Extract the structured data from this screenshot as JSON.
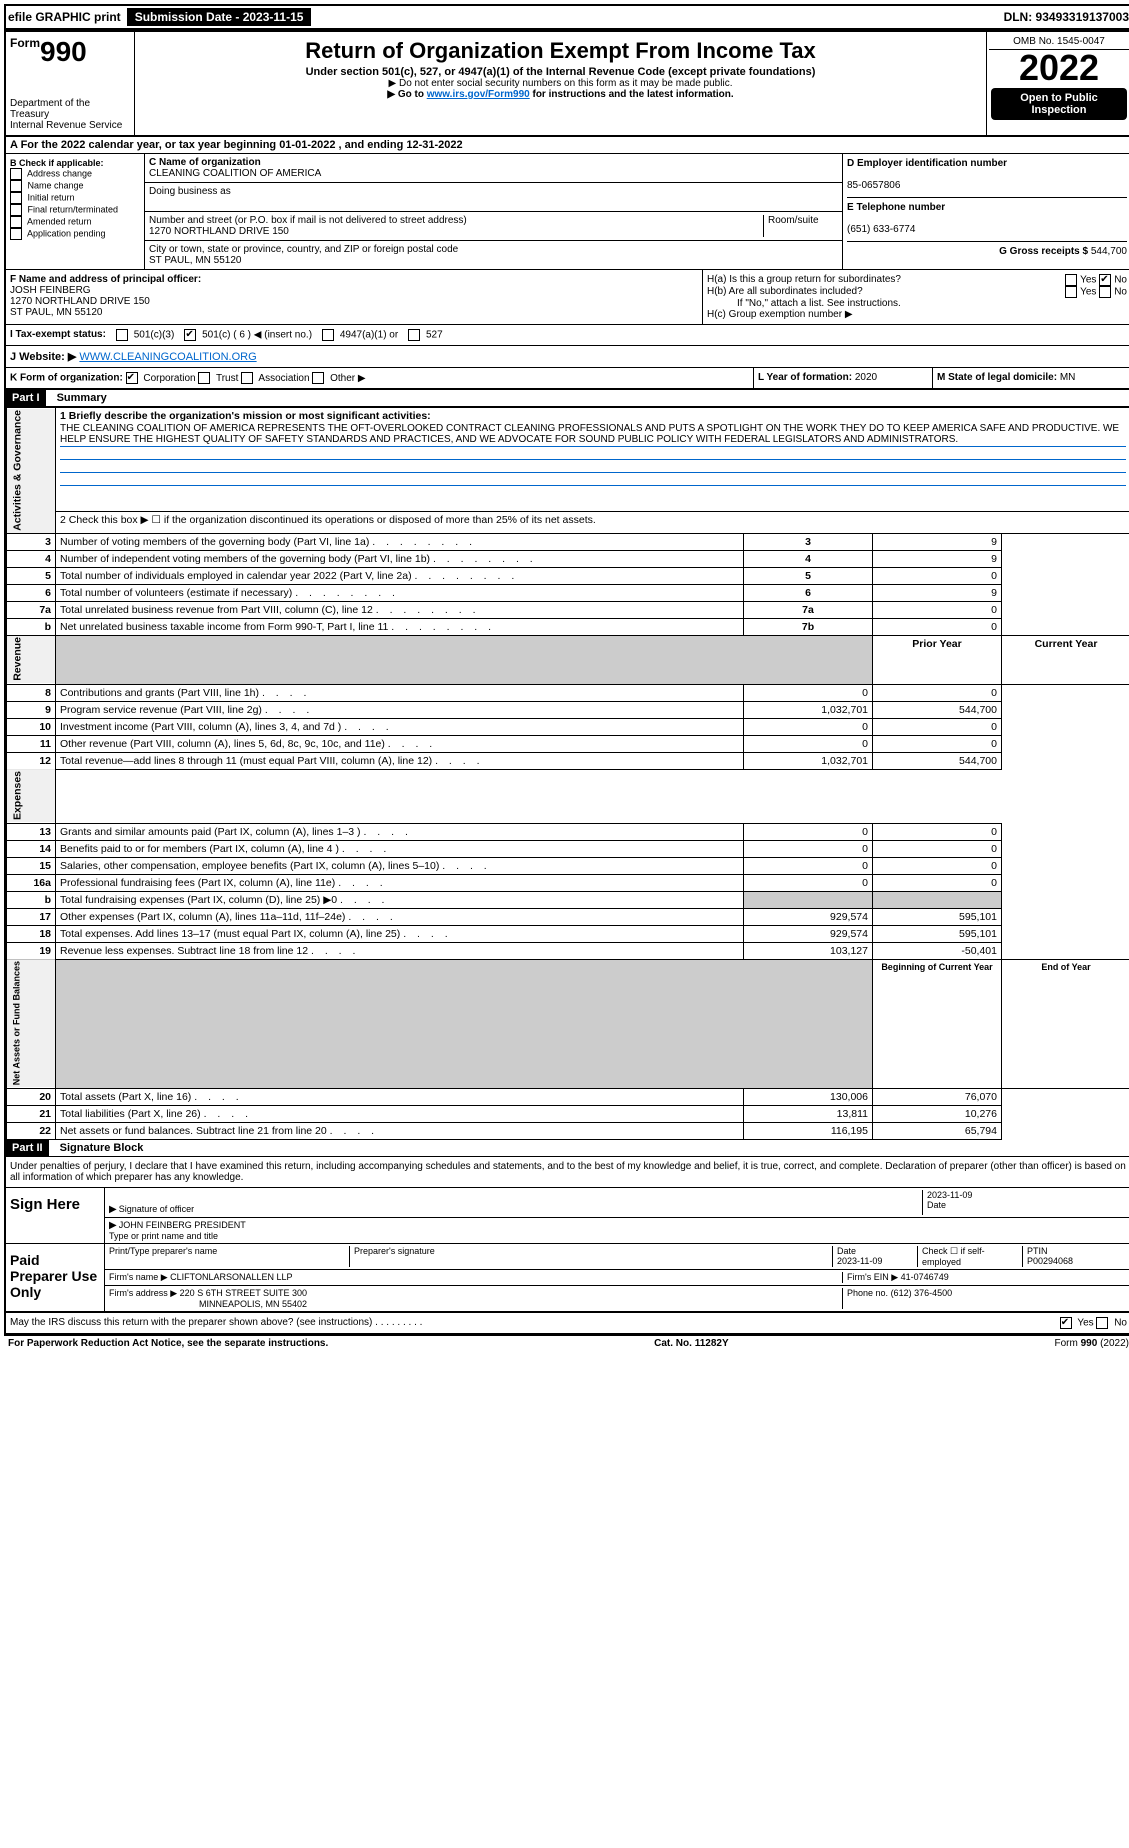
{
  "topbar": {
    "efile": "efile GRAPHIC print",
    "submission_btn": "Submission Date - 2023-11-15",
    "dln": "DLN: 93493319137003"
  },
  "header": {
    "form_word": "Form",
    "form_num": "990",
    "dept": "Department of the Treasury",
    "irs": "Internal Revenue Service",
    "title": "Return of Organization Exempt From Income Tax",
    "sub": "Under section 501(c), 527, or 4947(a)(1) of the Internal Revenue Code (except private foundations)",
    "note1": "▶ Do not enter social security numbers on this form as it may be made public.",
    "note2_pre": "▶ Go to ",
    "note2_link": "www.irs.gov/Form990",
    "note2_post": " for instructions and the latest information.",
    "omb": "OMB No. 1545-0047",
    "year": "2022",
    "open": "Open to Public Inspection"
  },
  "rowA": "A For the 2022 calendar year, or tax year beginning 01-01-2022    , and ending 12-31-2022",
  "colB": {
    "title": "B Check if applicable:",
    "items": [
      "Address change",
      "Name change",
      "Initial return",
      "Final return/terminated",
      "Amended return",
      "Application pending"
    ]
  },
  "colC": {
    "name_label": "C Name of organization",
    "name": "CLEANING COALITION OF AMERICA",
    "dba_label": "Doing business as",
    "dba": "",
    "street_label": "Number and street (or P.O. box if mail is not delivered to street address)",
    "room_label": "Room/suite",
    "street": "1270 NORTHLAND DRIVE 150",
    "city_label": "City or town, state or province, country, and ZIP or foreign postal code",
    "city": "ST PAUL, MN  55120"
  },
  "colD": {
    "ein_label": "D Employer identification number",
    "ein": "85-0657806",
    "phone_label": "E Telephone number",
    "phone": "(651) 633-6774",
    "gross_label": "G Gross receipts $",
    "gross": "544,700"
  },
  "rowF": {
    "label": "F  Name and address of principal officer:",
    "name": "JOSH FEINBERG",
    "addr1": "1270 NORTHLAND DRIVE 150",
    "addr2": "ST PAUL, MN  55120"
  },
  "rowH": {
    "ha": "H(a)  Is this a group return for subordinates?",
    "hb": "H(b)  Are all subordinates included?",
    "hb_note": "If \"No,\" attach a list. See instructions.",
    "hc": "H(c)  Group exemption number ▶",
    "yes": "Yes",
    "no": "No"
  },
  "rowI": {
    "label": "I   Tax-exempt status:",
    "opt1": "501(c)(3)",
    "opt2": "501(c) ( 6 ) ◀ (insert no.)",
    "opt3": "4947(a)(1) or",
    "opt4": "527"
  },
  "rowJ": {
    "label": "J   Website: ▶",
    "url": "WWW.CLEANINGCOALITION.ORG"
  },
  "rowK": {
    "label": "K Form of organization:",
    "opts": [
      "Corporation",
      "Trust",
      "Association",
      "Other ▶"
    ]
  },
  "rowL": {
    "label": "L Year of formation:",
    "val": "2020"
  },
  "rowM": {
    "label": "M State of legal domicile:",
    "val": "MN"
  },
  "part1": {
    "header": "Part I",
    "title": "Summary",
    "line1_label": "1  Briefly describe the organization's mission or most significant activities:",
    "mission": "THE CLEANING COALITION OF AMERICA REPRESENTS THE OFT-OVERLOOKED CONTRACT CLEANING PROFESSIONALS AND PUTS A SPOTLIGHT ON THE WORK THEY DO TO KEEP AMERICA SAFE AND PRODUCTIVE. WE HELP ENSURE THE HIGHEST QUALITY OF SAFETY STANDARDS AND PRACTICES, AND WE ADVOCATE FOR SOUND PUBLIC POLICY WITH FEDERAL LEGISLATORS AND ADMINISTRATORS.",
    "line2": "2   Check this box ▶ ☐  if the organization discontinued its operations or disposed of more than 25% of its net assets.",
    "vtab_gov": "Activities & Governance",
    "vtab_rev": "Revenue",
    "vtab_exp": "Expenses",
    "vtab_net": "Net Assets or Fund Balances",
    "lines_gov": [
      {
        "n": "3",
        "t": "Number of voting members of the governing body (Part VI, line 1a)",
        "box": "3",
        "v": "9"
      },
      {
        "n": "4",
        "t": "Number of independent voting members of the governing body (Part VI, line 1b)",
        "box": "4",
        "v": "9"
      },
      {
        "n": "5",
        "t": "Total number of individuals employed in calendar year 2022 (Part V, line 2a)",
        "box": "5",
        "v": "0"
      },
      {
        "n": "6",
        "t": "Total number of volunteers (estimate if necessary)",
        "box": "6",
        "v": "9"
      },
      {
        "n": "7a",
        "t": "Total unrelated business revenue from Part VIII, column (C), line 12",
        "box": "7a",
        "v": "0"
      },
      {
        "n": "b",
        "t": "Net unrelated business taxable income from Form 990-T, Part I, line 11",
        "box": "7b",
        "v": "0"
      }
    ],
    "col_prior": "Prior Year",
    "col_current": "Current Year",
    "lines_rev": [
      {
        "n": "8",
        "t": "Contributions and grants (Part VIII, line 1h)",
        "p": "0",
        "c": "0"
      },
      {
        "n": "9",
        "t": "Program service revenue (Part VIII, line 2g)",
        "p": "1,032,701",
        "c": "544,700"
      },
      {
        "n": "10",
        "t": "Investment income (Part VIII, column (A), lines 3, 4, and 7d )",
        "p": "0",
        "c": "0"
      },
      {
        "n": "11",
        "t": "Other revenue (Part VIII, column (A), lines 5, 6d, 8c, 9c, 10c, and 11e)",
        "p": "0",
        "c": "0"
      },
      {
        "n": "12",
        "t": "Total revenue—add lines 8 through 11 (must equal Part VIII, column (A), line 12)",
        "p": "1,032,701",
        "c": "544,700"
      }
    ],
    "lines_exp": [
      {
        "n": "13",
        "t": "Grants and similar amounts paid (Part IX, column (A), lines 1–3 )",
        "p": "0",
        "c": "0"
      },
      {
        "n": "14",
        "t": "Benefits paid to or for members (Part IX, column (A), line 4 )",
        "p": "0",
        "c": "0"
      },
      {
        "n": "15",
        "t": "Salaries, other compensation, employee benefits (Part IX, column (A), lines 5–10)",
        "p": "0",
        "c": "0"
      },
      {
        "n": "16a",
        "t": "Professional fundraising fees (Part IX, column (A), line 11e)",
        "p": "0",
        "c": "0"
      },
      {
        "n": "b",
        "t": "Total fundraising expenses (Part IX, column (D), line 25) ▶0",
        "p": "",
        "c": "",
        "gray": true
      },
      {
        "n": "17",
        "t": "Other expenses (Part IX, column (A), lines 11a–11d, 11f–24e)",
        "p": "929,574",
        "c": "595,101"
      },
      {
        "n": "18",
        "t": "Total expenses. Add lines 13–17 (must equal Part IX, column (A), line 25)",
        "p": "929,574",
        "c": "595,101"
      },
      {
        "n": "19",
        "t": "Revenue less expenses. Subtract line 18 from line 12",
        "p": "103,127",
        "c": "-50,401"
      }
    ],
    "col_begin": "Beginning of Current Year",
    "col_end": "End of Year",
    "lines_net": [
      {
        "n": "20",
        "t": "Total assets (Part X, line 16)",
        "p": "130,006",
        "c": "76,070"
      },
      {
        "n": "21",
        "t": "Total liabilities (Part X, line 26)",
        "p": "13,811",
        "c": "10,276"
      },
      {
        "n": "22",
        "t": "Net assets or fund balances. Subtract line 21 from line 20",
        "p": "116,195",
        "c": "65,794"
      }
    ]
  },
  "part2": {
    "header": "Part II",
    "title": "Signature Block",
    "decl": "Under penalties of perjury, I declare that I have examined this return, including accompanying schedules and statements, and to the best of my knowledge and belief, it is true, correct, and complete. Declaration of preparer (other than officer) is based on all information of which preparer has any knowledge."
  },
  "sign": {
    "label": "Sign Here",
    "sig_officer": "Signature of officer",
    "date": "Date",
    "date_val": "2023-11-09",
    "name": "JOHN FEINBERG  PRESIDENT",
    "name_label": "Type or print name and title"
  },
  "paid": {
    "label": "Paid Preparer Use Only",
    "prep_name_label": "Print/Type preparer's name",
    "prep_sig_label": "Preparer's signature",
    "date_label": "Date",
    "date_val": "2023-11-09",
    "check_label": "Check ☐ if self-employed",
    "ptin_label": "PTIN",
    "ptin": "P00294068",
    "firm_name_label": "Firm's name    ▶",
    "firm_name": "CLIFTONLARSONALLEN LLP",
    "firm_ein_label": "Firm's EIN ▶",
    "firm_ein": "41-0746749",
    "firm_addr_label": "Firm's address ▶",
    "firm_addr1": "220 S 6TH STREET SUITE 300",
    "firm_addr2": "MINNEAPOLIS, MN  55402",
    "phone_label": "Phone no.",
    "phone": "(612) 376-4500"
  },
  "may_discuss": "May the IRS discuss this return with the preparer shown above? (see instructions)",
  "footer": {
    "paperwork": "For Paperwork Reduction Act Notice, see the separate instructions.",
    "cat": "Cat. No. 11282Y",
    "form": "Form 990 (2022)"
  }
}
